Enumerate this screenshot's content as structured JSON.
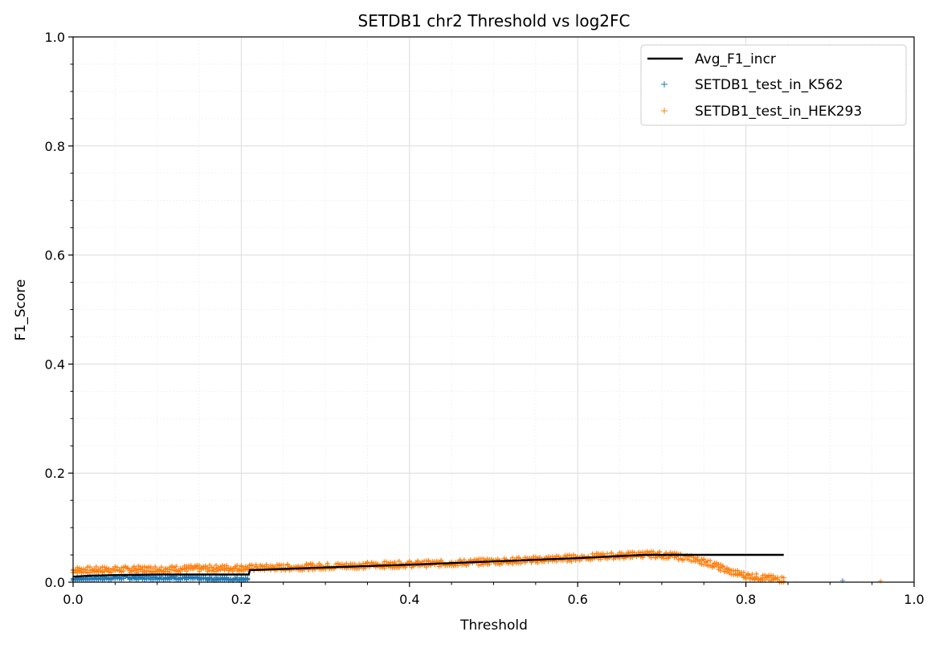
{
  "chart_data": {
    "type": "scatter",
    "title": "SETDB1 chr2 Threshold vs log2FC",
    "xlabel": "Threshold",
    "ylabel": "F1_Score",
    "xlim": [
      0.0,
      1.0
    ],
    "ylim": [
      0.0,
      1.0
    ],
    "xticks": [
      "0.0",
      "0.2",
      "0.4",
      "0.6",
      "0.8",
      "1.0"
    ],
    "yticks": [
      "0.0",
      "0.2",
      "0.4",
      "0.6",
      "0.8",
      "1.0"
    ],
    "grid": true,
    "legend_position": "top-right",
    "series": [
      {
        "name": "Avg_F1_incr",
        "kind": "line",
        "color": "#000000",
        "x": [
          0.0,
          0.02,
          0.05,
          0.1,
          0.15,
          0.209,
          0.21,
          0.3,
          0.4,
          0.5,
          0.6,
          0.68,
          0.72,
          0.845
        ],
        "y": [
          0.01,
          0.012,
          0.013,
          0.014,
          0.014,
          0.014,
          0.022,
          0.027,
          0.032,
          0.038,
          0.044,
          0.05,
          0.05,
          0.05
        ]
      },
      {
        "name": "SETDB1_test_in_K562",
        "kind": "scatter",
        "marker": "+",
        "color": "#1f77b4",
        "x": [
          0.0,
          0.02,
          0.04,
          0.06,
          0.08,
          0.1,
          0.12,
          0.14,
          0.16,
          0.18,
          0.2,
          0.21,
          0.915
        ],
        "y": [
          0.006,
          0.007,
          0.007,
          0.008,
          0.008,
          0.008,
          0.008,
          0.007,
          0.006,
          0.006,
          0.006,
          0.006,
          0.003
        ]
      },
      {
        "name": "SETDB1_test_in_HEK293",
        "kind": "scatter",
        "marker": "+",
        "color": "#ff7f0e",
        "x": [
          0.0,
          0.05,
          0.1,
          0.15,
          0.2,
          0.25,
          0.3,
          0.35,
          0.4,
          0.45,
          0.5,
          0.55,
          0.6,
          0.65,
          0.68,
          0.7,
          0.72,
          0.74,
          0.76,
          0.78,
          0.8,
          0.82,
          0.84,
          0.96
        ],
        "y": [
          0.022,
          0.023,
          0.024,
          0.025,
          0.026,
          0.027,
          0.029,
          0.031,
          0.033,
          0.035,
          0.038,
          0.041,
          0.045,
          0.049,
          0.051,
          0.05,
          0.047,
          0.042,
          0.033,
          0.02,
          0.012,
          0.008,
          0.005,
          0.002
        ]
      }
    ]
  }
}
